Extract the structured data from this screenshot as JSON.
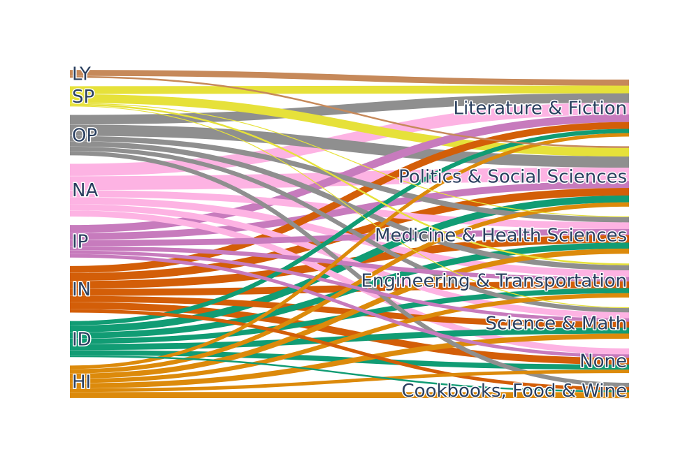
{
  "chart_data": {
    "type": "sankey",
    "sources": [
      {
        "name": "LY",
        "color": "#c6895a"
      },
      {
        "name": "SP",
        "color": "#e6e13a"
      },
      {
        "name": "OP",
        "color": "#8f8f8f"
      },
      {
        "name": "NA",
        "color": "#fdb3e3"
      },
      {
        "name": "IP",
        "color": "#c77bbd"
      },
      {
        "name": "IN",
        "color": "#d35e08"
      },
      {
        "name": "ID",
        "color": "#119c74"
      },
      {
        "name": "HI",
        "color": "#dc8a0b"
      }
    ],
    "targets": [
      "Literature & Fiction",
      "Politics & Social Sciences",
      "Medicine & Health Sciences",
      "Engineering & Transportation",
      "Science & Math",
      "None",
      "Cookbooks, Food & Wine"
    ],
    "links": [
      {
        "source": "LY",
        "target": "Literature & Fiction",
        "value": 7
      },
      {
        "source": "LY",
        "target": "Politics & Social Sciences",
        "value": 2
      },
      {
        "source": "SP",
        "target": "Literature & Fiction",
        "value": 9
      },
      {
        "source": "SP",
        "target": "Politics & Social Sciences",
        "value": 10
      },
      {
        "source": "SP",
        "target": "Medicine & Health Sciences",
        "value": 1
      },
      {
        "source": "SP",
        "target": "Engineering & Transportation",
        "value": 2
      },
      {
        "source": "SP",
        "target": "Science & Math",
        "value": 1
      },
      {
        "source": "OP",
        "target": "Literature & Fiction",
        "value": 11
      },
      {
        "source": "OP",
        "target": "Politics & Social Sciences",
        "value": 13
      },
      {
        "source": "OP",
        "target": "Medicine & Health Sciences",
        "value": 6
      },
      {
        "source": "OP",
        "target": "Engineering & Transportation",
        "value": 6
      },
      {
        "source": "OP",
        "target": "Science & Math",
        "value": 5
      },
      {
        "source": "OP",
        "target": "Cookbooks, Food & Wine",
        "value": 5
      },
      {
        "source": "NA",
        "target": "Literature & Fiction",
        "value": 14
      },
      {
        "source": "NA",
        "target": "Politics & Social Sciences",
        "value": 16
      },
      {
        "source": "NA",
        "target": "Medicine & Health Sciences",
        "value": 8
      },
      {
        "source": "NA",
        "target": "Engineering & Transportation",
        "value": 8
      },
      {
        "source": "NA",
        "target": "Science & Math",
        "value": 7
      },
      {
        "source": "NA",
        "target": "None",
        "value": 7
      },
      {
        "source": "IP",
        "target": "Literature & Fiction",
        "value": 9
      },
      {
        "source": "IP",
        "target": "Politics & Social Sciences",
        "value": 8
      },
      {
        "source": "IP",
        "target": "Medicine & Health Sciences",
        "value": 7
      },
      {
        "source": "IP",
        "target": "Engineering & Transportation",
        "value": 5
      },
      {
        "source": "IP",
        "target": "Science & Math",
        "value": 4
      },
      {
        "source": "IP",
        "target": "None",
        "value": 4
      },
      {
        "source": "IN",
        "target": "Literature & Fiction",
        "value": 8
      },
      {
        "source": "IN",
        "target": "Politics & Social Sciences",
        "value": 9
      },
      {
        "source": "IN",
        "target": "Medicine & Health Sciences",
        "value": 9
      },
      {
        "source": "IN",
        "target": "Engineering & Transportation",
        "value": 8
      },
      {
        "source": "IN",
        "target": "Science & Math",
        "value": 7
      },
      {
        "source": "IN",
        "target": "None",
        "value": 8
      },
      {
        "source": "IN",
        "target": "Cookbooks, Food & Wine",
        "value": 4
      },
      {
        "source": "ID",
        "target": "Literature & Fiction",
        "value": 5
      },
      {
        "source": "ID",
        "target": "Politics & Social Sciences",
        "value": 8
      },
      {
        "source": "ID",
        "target": "Medicine & Health Sciences",
        "value": 7
      },
      {
        "source": "ID",
        "target": "Engineering & Transportation",
        "value": 6
      },
      {
        "source": "ID",
        "target": "Science & Math",
        "value": 7
      },
      {
        "source": "ID",
        "target": "None",
        "value": 6
      },
      {
        "source": "ID",
        "target": "Cookbooks, Food & Wine",
        "value": 2
      },
      {
        "source": "HI",
        "target": "Literature & Fiction",
        "value": 4
      },
      {
        "source": "HI",
        "target": "Politics & Social Sciences",
        "value": 5
      },
      {
        "source": "HI",
        "target": "Medicine & Health Sciences",
        "value": 6
      },
      {
        "source": "HI",
        "target": "Engineering & Transportation",
        "value": 5
      },
      {
        "source": "HI",
        "target": "Science & Math",
        "value": 6
      },
      {
        "source": "HI",
        "target": "None",
        "value": 4
      },
      {
        "source": "HI",
        "target": "Cookbooks, Food & Wine",
        "value": 7
      }
    ]
  }
}
